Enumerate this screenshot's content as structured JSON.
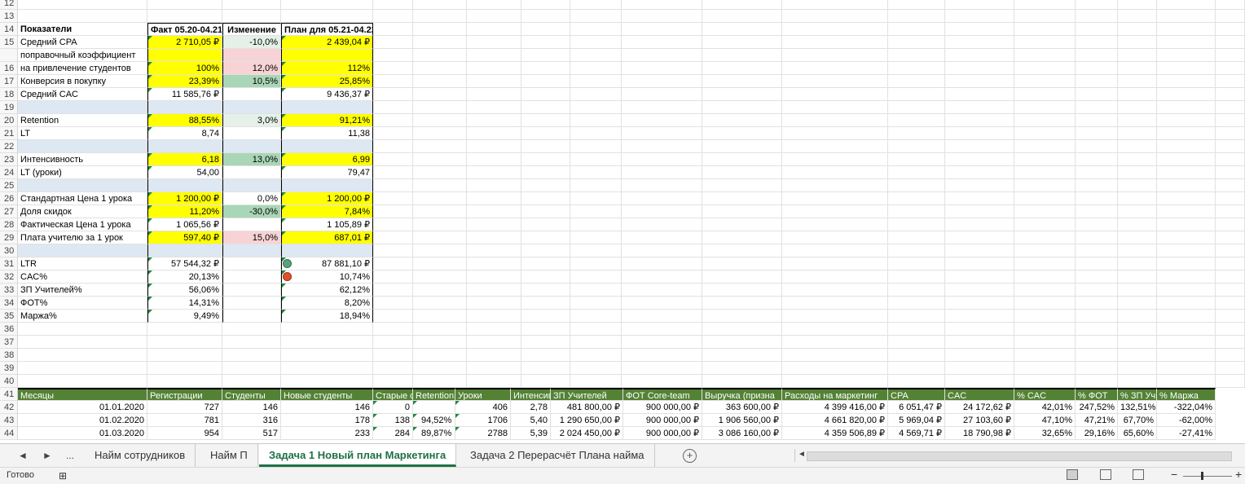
{
  "top_rows": [
    {
      "n": "12",
      "cells": []
    },
    {
      "n": "13",
      "cells": []
    },
    {
      "n": "14",
      "cells": [
        "Показатели",
        "Факт 05.20-04.21",
        "Изменение",
        "План для 05.21-04.22"
      ],
      "header": true
    },
    {
      "n": "15",
      "cells": [
        "Средний CPA",
        "2 710,05 ₽",
        "-10,0%",
        "2 439,04 ₽"
      ],
      "bg": [
        "",
        "yellow",
        "lgreen",
        "yellow"
      ]
    },
    {
      "n": "",
      "cells": [
        "поправочный коэффициент",
        "",
        "",
        ""
      ],
      "bg": [
        "",
        "yellow",
        "pink",
        "yellow"
      ]
    },
    {
      "n": "16",
      "cells": [
        "на привлечение студентов",
        "100%",
        "12,0%",
        "112%"
      ],
      "bg": [
        "",
        "yellow",
        "pink",
        "yellow"
      ]
    },
    {
      "n": "17",
      "cells": [
        "Конверсия в покупку",
        "23,39%",
        "10,5%",
        "25,85%"
      ],
      "bg": [
        "",
        "yellow",
        "mgreen",
        "yellow"
      ]
    },
    {
      "n": "18",
      "cells": [
        "Средний CAC",
        "11 585,76 ₽",
        "",
        "9 436,37 ₽"
      ]
    },
    {
      "n": "19",
      "cells": [
        "",
        "",
        "",
        ""
      ],
      "band": true
    },
    {
      "n": "20",
      "cells": [
        "Retention",
        "88,55%",
        "3,0%",
        "91,21%"
      ],
      "bg": [
        "",
        "yellow",
        "lgreen",
        "yellow"
      ]
    },
    {
      "n": "21",
      "cells": [
        "LT",
        "8,74",
        "",
        "11,38"
      ]
    },
    {
      "n": "22",
      "cells": [
        "",
        "",
        "",
        ""
      ],
      "band": true
    },
    {
      "n": "23",
      "cells": [
        "Интенсивность",
        "6,18",
        "13,0%",
        "6,99"
      ],
      "bg": [
        "",
        "yellow",
        "mgreen",
        "yellow"
      ]
    },
    {
      "n": "24",
      "cells": [
        "LT (уроки)",
        "54,00",
        "",
        "79,47"
      ]
    },
    {
      "n": "25",
      "cells": [
        "",
        "",
        "",
        ""
      ],
      "band": true
    },
    {
      "n": "26",
      "cells": [
        "Стандартная Цена 1 урока",
        "1 200,00 ₽",
        "0,0%",
        "1 200,00 ₽"
      ],
      "bg": [
        "",
        "yellow",
        "",
        "yellow"
      ]
    },
    {
      "n": "27",
      "cells": [
        "Доля скидок",
        "11,20%",
        "-30,0%",
        "7,84%"
      ],
      "bg": [
        "",
        "yellow",
        "mgreen",
        "yellow"
      ]
    },
    {
      "n": "28",
      "cells": [
        "Фактическая Цена 1 урока",
        "1 065,56 ₽",
        "",
        "1 105,89 ₽"
      ]
    },
    {
      "n": "29",
      "cells": [
        "Плата учителю за 1 урок",
        "597,40 ₽",
        "15,0%",
        "687,01 ₽"
      ],
      "bg": [
        "",
        "yellow",
        "pink",
        "yellow"
      ]
    },
    {
      "n": "30",
      "cells": [
        "",
        "",
        "",
        ""
      ],
      "band": true
    },
    {
      "n": "31",
      "cells": [
        "LTR",
        "57 544,32 ₽",
        "",
        "87 881,10 ₽"
      ],
      "dot": "green"
    },
    {
      "n": "32",
      "cells": [
        "CAC%",
        "20,13%",
        "",
        "10,74%"
      ],
      "dot": "red"
    },
    {
      "n": "33",
      "cells": [
        "ЗП Учителей%",
        "56,06%",
        "",
        "62,12%"
      ]
    },
    {
      "n": "34",
      "cells": [
        "ФОТ%",
        "14,31%",
        "",
        "8,20%"
      ]
    },
    {
      "n": "35",
      "cells": [
        "Маржа%",
        "9,49%",
        "",
        "18,94%"
      ]
    },
    {
      "n": "36",
      "cells": []
    },
    {
      "n": "37",
      "cells": []
    },
    {
      "n": "38",
      "cells": []
    },
    {
      "n": "39",
      "cells": []
    },
    {
      "n": "40",
      "cells": []
    }
  ],
  "bottom_table": {
    "header_rownum": "41",
    "headers": [
      "Месяцы",
      "Регистрации",
      "Студенты",
      "Новые студенты",
      "Старые с",
      "Retention",
      "Уроки",
      "Интенсив",
      "ЗП Учителей",
      "ФОТ Core-team",
      "Выручка (призна",
      "Расходы на маркетинг",
      "CPA",
      "CAC",
      "% CAC",
      "% ФОТ",
      "% ЗП Учи",
      "% Маржа"
    ],
    "rows": [
      {
        "n": "42",
        "cells": [
          "01.01.2020",
          "727",
          "146",
          "146",
          "0",
          "",
          "406",
          "2,78",
          "481 800,00 ₽",
          "900 000,00 ₽",
          "363 600,00 ₽",
          "4 399 416,00 ₽",
          "6 051,47 ₽",
          "24 172,62 ₽",
          "42,01%",
          "247,52%",
          "132,51%",
          "-322,04%"
        ]
      },
      {
        "n": "43",
        "cells": [
          "01.02.2020",
          "781",
          "316",
          "178",
          "138",
          "94,52%",
          "1706",
          "5,40",
          "1 290 650,00 ₽",
          "900 000,00 ₽",
          "1 906 560,00 ₽",
          "4 661 820,00 ₽",
          "5 969,04 ₽",
          "27 103,60 ₽",
          "47,10%",
          "47,21%",
          "67,70%",
          "-62,00%"
        ]
      },
      {
        "n": "44",
        "cells": [
          "01.03.2020",
          "954",
          "517",
          "233",
          "284",
          "89,87%",
          "2788",
          "5,39",
          "2 024 450,00 ₽",
          "900 000,00 ₽",
          "3 086 160,00 ₽",
          "4 359 506,89 ₽",
          "4 569,71 ₽",
          "18 790,98 ₽",
          "32,65%",
          "29,16%",
          "65,60%",
          "-27,41%"
        ]
      }
    ]
  },
  "tabs": {
    "nav_prev": "◄",
    "nav_next": "►",
    "ellipsis": "...",
    "items": [
      {
        "label": "Найм сотрудников",
        "active": false
      },
      {
        "label": "Найм П",
        "active": false
      },
      {
        "label": "Задача 1 Новый план Маркетинга",
        "active": true
      },
      {
        "label": "Задача 2 Перерасчёт Плана найма",
        "active": false
      }
    ],
    "add": "+"
  },
  "status": {
    "ready": "Готово",
    "accessibility_icon": "accessibility-icon"
  },
  "colors": {
    "yellow": "#ffff00",
    "header_green": "#548235",
    "active_tab": "#1e7145"
  }
}
